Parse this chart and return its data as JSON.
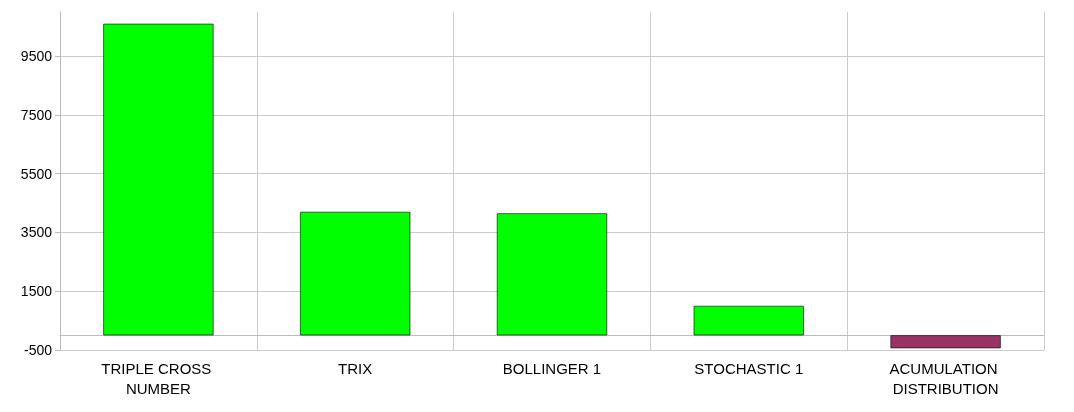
{
  "chart_data": {
    "type": "bar",
    "categories": [
      "TRIPLE CROSS NUMBER",
      "TRIX",
      "BOLLINGER 1",
      "STOCHASTIC 1",
      "ACUMULATION DISTRIBUTION"
    ],
    "values": [
      10600,
      4200,
      4150,
      1000,
      -440
    ],
    "colors": [
      "#00ff00",
      "#00ff00",
      "#00ff00",
      "#00ff00",
      "#993366"
    ],
    "ylim": [
      -500,
      11000
    ],
    "yticks": [
      -500,
      1500,
      3500,
      5500,
      7500,
      9500
    ],
    "grid": true
  }
}
